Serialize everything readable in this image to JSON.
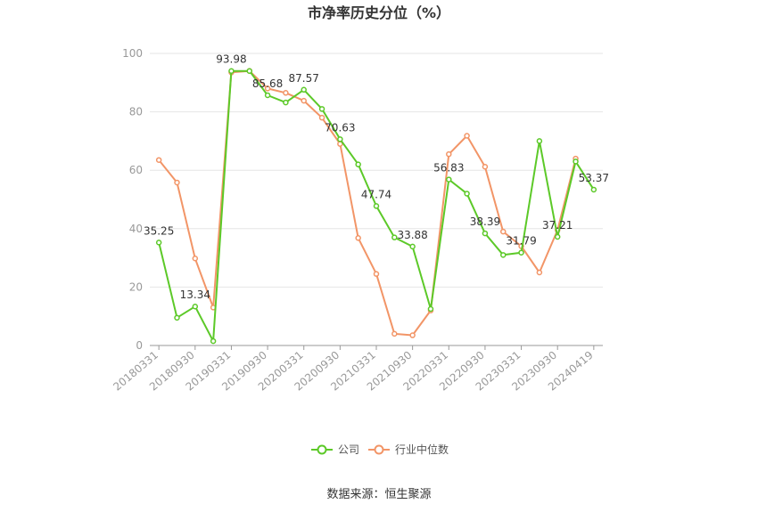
{
  "chart_data": {
    "type": "line",
    "title": "市净率历史分位（%）",
    "xlabel": "",
    "ylabel": "",
    "ylim": [
      0,
      100
    ],
    "yticks": [
      0,
      20,
      40,
      60,
      80,
      100
    ],
    "grid": true,
    "legend_position": "bottom",
    "x": [
      "20180331",
      "20180630",
      "20180930",
      "20181231",
      "20190331",
      "20190630",
      "20190930",
      "20191231",
      "20200331",
      "20200630",
      "20200930",
      "20201231",
      "20210331",
      "20210630",
      "20210930",
      "20211231",
      "20220331",
      "20220630",
      "20220930",
      "20221231",
      "20230331",
      "20230630",
      "20230930",
      "20231231",
      "20240419"
    ],
    "x_tick_labels": [
      "20180331",
      "20180930",
      "20190331",
      "20190930",
      "20200331",
      "20200930",
      "20210331",
      "20210930",
      "20220331",
      "20220930",
      "20230331",
      "20230930",
      "20240419"
    ],
    "x_tick_indices": [
      0,
      2,
      4,
      6,
      8,
      10,
      12,
      14,
      16,
      18,
      20,
      22,
      24
    ],
    "series": [
      {
        "name": "公司",
        "color": "#5cc928",
        "values": [
          35.25,
          9.5,
          13.34,
          1.5,
          93.98,
          93.98,
          85.68,
          83.2,
          87.57,
          81.0,
          70.63,
          62.0,
          47.74,
          37.0,
          33.88,
          12.5,
          56.83,
          52.0,
          38.39,
          31.0,
          31.79,
          70.0,
          37.21,
          63.0,
          53.37
        ],
        "labels": {
          "0": "35.25",
          "2": "13.34",
          "4": "93.98",
          "6": "85.68",
          "8": "87.57",
          "10": "70.63",
          "12": "47.74",
          "14": "33.88",
          "16": "56.83",
          "18": "38.39",
          "20": "31.79",
          "22": "37.21",
          "24": "53.37"
        }
      },
      {
        "name": "行业中位数",
        "color": "#f29567",
        "values": [
          63.5,
          55.8,
          29.8,
          13.0,
          93.5,
          94.0,
          88.0,
          86.5,
          83.8,
          78.0,
          69.0,
          36.8,
          24.5,
          4.0,
          3.5,
          12.0,
          65.5,
          71.8,
          61.2,
          39.0,
          34.0,
          25.0,
          39.5,
          64.0,
          null
        ]
      }
    ]
  },
  "source_text": "数据来源：恒生聚源"
}
